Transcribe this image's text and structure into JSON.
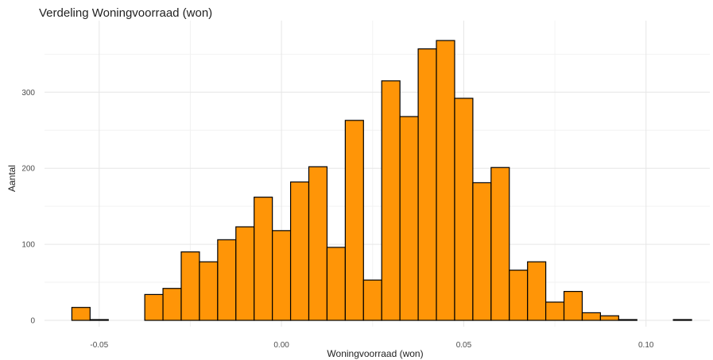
{
  "chart_data": {
    "type": "bar",
    "title": "Verdeling Woningvoorraad (won)",
    "xlabel": "Woningvoorraad (won)",
    "ylabel": "Aantal",
    "bin_width": 0.005,
    "bin_start": -0.0575,
    "xlim": [
      -0.065,
      0.1175
    ],
    "ylim": [
      0,
      390
    ],
    "xticks": [
      -0.05,
      0.0,
      0.05,
      0.1
    ],
    "xtick_labels": [
      "-0.05",
      "0.00",
      "0.05",
      "0.10"
    ],
    "yticks": [
      0,
      100,
      200,
      300
    ],
    "ytick_labels": [
      "0",
      "100",
      "200",
      "300"
    ],
    "grid": true,
    "values": [
      17,
      1,
      0,
      0,
      34,
      42,
      90,
      77,
      106,
      123,
      162,
      118,
      182,
      202,
      96,
      263,
      53,
      315,
      268,
      357,
      368,
      292,
      181,
      201,
      66,
      77,
      24,
      38,
      10,
      6,
      1,
      0,
      0,
      1
    ],
    "bar_color": "#FF9507",
    "bar_edge_color": "#000000"
  }
}
